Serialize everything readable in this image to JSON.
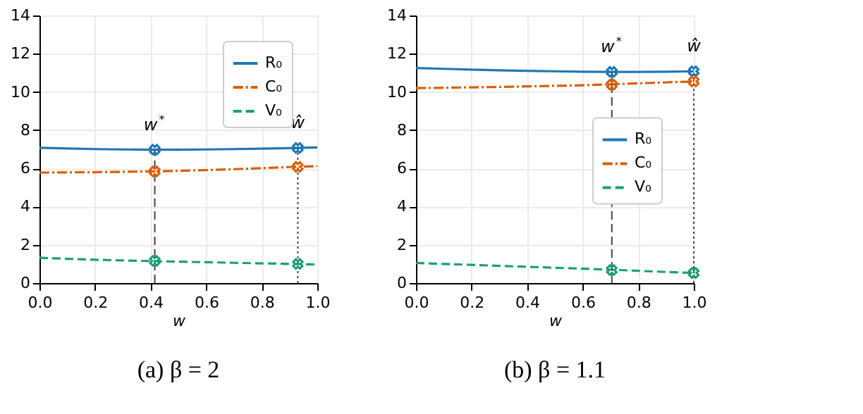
{
  "chart_data": [
    {
      "type": "line",
      "title": "(a) β = 2",
      "xlabel": "w",
      "x": [
        0,
        0.1,
        0.2,
        0.3,
        0.4,
        0.5,
        0.6,
        0.7,
        0.8,
        0.9,
        1.0
      ],
      "xlim": [
        0,
        1
      ],
      "xticks": [
        {
          "value": 0,
          "label": "0.0"
        },
        {
          "value": 0.2,
          "label": "0.2"
        },
        {
          "value": 0.4,
          "label": "0.4"
        },
        {
          "value": 0.6,
          "label": "0.6"
        },
        {
          "value": 0.8,
          "label": "0.8"
        },
        {
          "value": 1,
          "label": "1.0"
        }
      ],
      "ylim": [
        0,
        14
      ],
      "yticks": [
        0,
        2,
        4,
        6,
        8,
        10,
        12,
        14
      ],
      "grid": true,
      "legend": "top right",
      "series": [
        {
          "name": "R₀",
          "color": "#1f77b4",
          "line_style": "solid",
          "values": [
            7.08,
            7.04,
            7.01,
            6.99,
            6.98,
            6.98,
            6.99,
            7.01,
            7.03,
            7.06,
            7.1
          ]
        },
        {
          "name": "C₀",
          "color": "#d95f02",
          "line_style": "dashed",
          "values": [
            5.78,
            5.79,
            5.8,
            5.82,
            5.84,
            5.87,
            5.91,
            5.96,
            6.01,
            6.07,
            6.12
          ]
        },
        {
          "name": "V₀",
          "color": "#1b9e77",
          "line_style": "dashed",
          "values": [
            1.32,
            1.27,
            1.22,
            1.18,
            1.15,
            1.12,
            1.09,
            1.06,
            1.03,
            1.0,
            0.97
          ]
        },
        {
          "type": "scatter",
          "marker": "cross",
          "color": "#1f77b4",
          "x": [
            0.415,
            0.93
          ],
          "values": [
            6.98,
            7.07
          ]
        },
        {
          "type": "scatter",
          "marker": "cross",
          "color": "#d95f02",
          "x": [
            0.415,
            0.93
          ],
          "values": [
            5.84,
            6.08
          ]
        },
        {
          "type": "scatter",
          "marker": "cross",
          "color": "#1b9e77",
          "x": [
            0.415,
            0.93
          ],
          "values": [
            1.16,
            1.0
          ]
        }
      ],
      "ref_lines": [
        {
          "axis": "x",
          "value": 0.415,
          "label": "w$^{*}$",
          "line_style": "dashed",
          "color": "#444444"
        },
        {
          "axis": "x",
          "value": 0.93,
          "label": "ŵ",
          "line_style": "dotted",
          "color": "#444444"
        }
      ]
    },
    {
      "type": "line",
      "title": "(b) β = 1.1",
      "xlabel": "w",
      "x": [
        0,
        0.1,
        0.2,
        0.3,
        0.4,
        0.5,
        0.6,
        0.7,
        0.8,
        0.9,
        1.0
      ],
      "xlim": [
        0,
        1
      ],
      "xticks": [
        {
          "value": 0,
          "label": "0.0"
        },
        {
          "value": 0.2,
          "label": "0.2"
        },
        {
          "value": 0.4,
          "label": "0.4"
        },
        {
          "value": 0.6,
          "label": "0.6"
        },
        {
          "value": 0.8,
          "label": "0.8"
        },
        {
          "value": 1,
          "label": "1.0"
        }
      ],
      "ylim": [
        0,
        14
      ],
      "yticks": [
        0,
        2,
        4,
        6,
        8,
        10,
        12,
        14
      ],
      "grid": true,
      "legend": "right",
      "series": [
        {
          "name": "R₀",
          "color": "#1f77b4",
          "line_style": "solid",
          "values": [
            11.25,
            11.21,
            11.17,
            11.13,
            11.1,
            11.08,
            11.06,
            11.05,
            11.05,
            11.06,
            11.08
          ]
        },
        {
          "name": "C₀",
          "color": "#d95f02",
          "line_style": "dashed",
          "values": [
            10.2,
            10.22,
            10.24,
            10.26,
            10.29,
            10.32,
            10.35,
            10.4,
            10.45,
            10.5,
            10.55
          ]
        },
        {
          "name": "V₀",
          "color": "#1b9e77",
          "line_style": "dashed",
          "values": [
            1.05,
            1.0,
            0.95,
            0.9,
            0.85,
            0.8,
            0.75,
            0.7,
            0.64,
            0.58,
            0.53
          ]
        },
        {
          "type": "scatter",
          "marker": "cross",
          "color": "#1f77b4",
          "x": [
            0.705,
            1.0
          ],
          "values": [
            11.05,
            11.08
          ]
        },
        {
          "type": "scatter",
          "marker": "cross",
          "color": "#d95f02",
          "x": [
            0.705,
            1.0
          ],
          "values": [
            10.38,
            10.55
          ]
        },
        {
          "type": "scatter",
          "marker": "cross",
          "color": "#1b9e77",
          "x": [
            0.705,
            1.0
          ],
          "values": [
            0.68,
            0.53
          ]
        }
      ],
      "ref_lines": [
        {
          "axis": "x",
          "value": 0.705,
          "label": "w$^{*}$",
          "line_style": "dashed",
          "color": "#444444"
        },
        {
          "axis": "x",
          "value": 1.0,
          "label": "ŵ",
          "line_style": "dotted",
          "color": "#444444"
        }
      ]
    }
  ]
}
